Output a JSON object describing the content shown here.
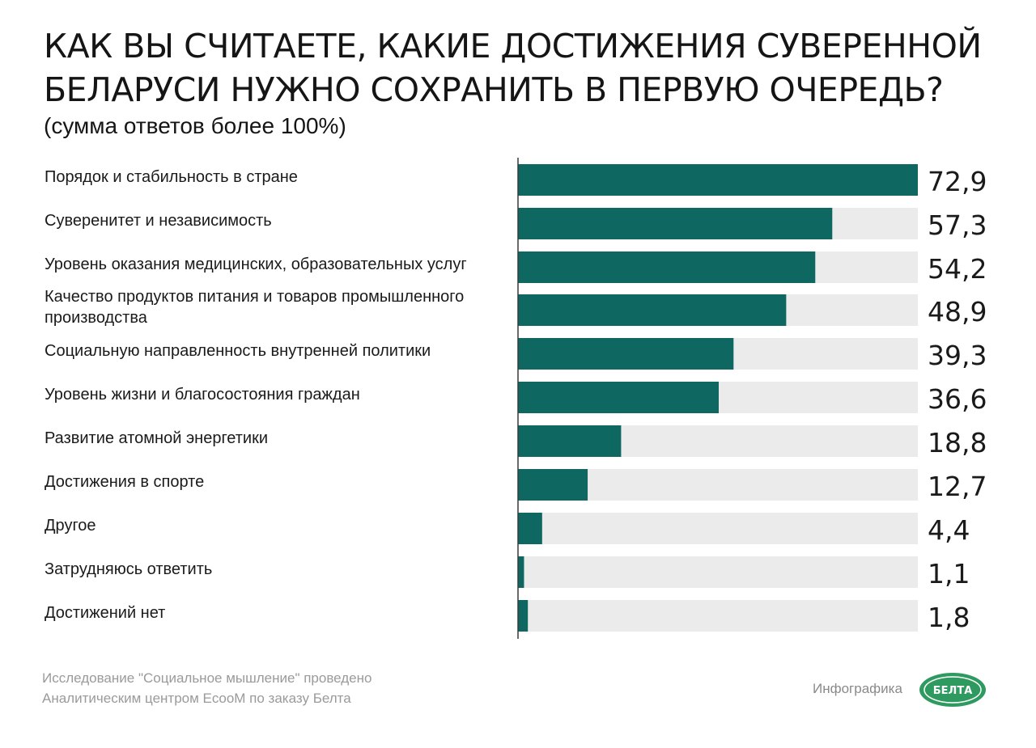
{
  "chart_data": {
    "type": "bar",
    "orientation": "horizontal",
    "title": "КАК ВЫ СЧИТАЕТЕ, КАКИЕ ДОСТИЖЕНИЯ СУВЕРЕННОЙ БЕЛАРУСИ НУЖНО СОХРАНИТЬ В ПЕРВУЮ ОЧЕРЕДЬ?",
    "subtitle": "(сумма ответов более 100%)",
    "categories": [
      "Порядок и стабильность в стране",
      "Суверенитет и независимость",
      "Уровень оказания медицинских, образовательных услуг",
      "Качество продуктов питания и товаров промышленного производства",
      "Социальную направленность внутренней политики",
      "Уровень жизни и благосостояния граждан",
      "Развитие атомной энергетики",
      "Достижения в спорте",
      "Другое",
      "Затрудняюсь ответить",
      "Достижений нет"
    ],
    "values": [
      72.9,
      57.3,
      54.2,
      48.9,
      39.3,
      36.6,
      18.8,
      12.7,
      4.4,
      1.1,
      1.8
    ],
    "value_labels": [
      "72,9",
      "57,3",
      "54,2",
      "48,9",
      "39,3",
      "36,6",
      "18,8",
      "12,7",
      "4,4",
      "1,1",
      "1,8"
    ],
    "xlim": [
      0,
      72.9
    ],
    "bar_color": "#0f6762",
    "track_color": "#ebebeb",
    "grid": false,
    "legend": "none"
  },
  "footer": {
    "source_line1": "Исследование \"Социальное мышление\" проведено",
    "source_line2": "Аналитическим центром EcooM по заказу Белта",
    "credit": "Инфографика",
    "logo_text": "БЕЛТА"
  }
}
